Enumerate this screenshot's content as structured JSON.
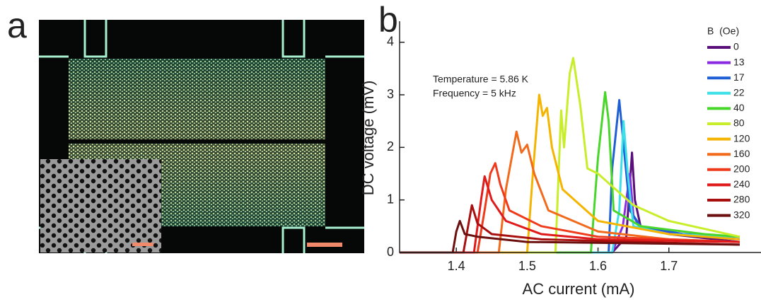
{
  "panel_a": {
    "label": "a"
  },
  "chart_data": {
    "type": "line",
    "panel_label": "b",
    "x_label": "AC current (mA)",
    "y_label": "DC voltage (mV)",
    "annotations": [
      "Temperature = 5.86 K",
      "Frequency = 5 kHz"
    ],
    "legend_title": "B  (Oe)",
    "xlim": [
      1.32,
      1.83
    ],
    "ylim": [
      0,
      4.4
    ],
    "xticks": [
      1.4,
      1.5,
      1.6,
      1.7
    ],
    "yticks": [
      0,
      1,
      2,
      3,
      4
    ],
    "series": [
      {
        "name": "0",
        "color": "#5b0f7a",
        "x": [
          1.32,
          1.62,
          1.64,
          1.648,
          1.652,
          1.66,
          1.7,
          1.8
        ],
        "values": [
          0,
          0,
          0.3,
          1.9,
          1.0,
          0.5,
          0.35,
          0.2
        ]
      },
      {
        "name": "13",
        "color": "#8a2be2",
        "x": [
          1.32,
          1.62,
          1.635,
          1.645,
          1.65,
          1.66,
          1.72,
          1.8
        ],
        "values": [
          0,
          0,
          0.5,
          1.5,
          0.7,
          0.45,
          0.35,
          0.25
        ]
      },
      {
        "name": "17",
        "color": "#1f5fd6",
        "x": [
          1.32,
          1.615,
          1.62,
          1.63,
          1.635,
          1.645,
          1.66,
          1.72,
          1.8
        ],
        "values": [
          0,
          0,
          1.6,
          2.9,
          2.2,
          0.8,
          0.5,
          0.35,
          0.3
        ]
      },
      {
        "name": "22",
        "color": "#3ee0e8",
        "x": [
          1.32,
          1.62,
          1.63,
          1.636,
          1.642,
          1.65,
          1.7,
          1.8
        ],
        "values": [
          0,
          0,
          0.8,
          2.5,
          1.5,
          0.5,
          0.35,
          0.3
        ]
      },
      {
        "name": "40",
        "color": "#49d62a",
        "x": [
          1.32,
          1.59,
          1.6,
          1.61,
          1.615,
          1.622,
          1.66,
          1.75,
          1.8
        ],
        "values": [
          0,
          0,
          1.8,
          3.05,
          2.5,
          0.8,
          0.5,
          0.35,
          0.3
        ]
      },
      {
        "name": "80",
        "color": "#c8ee2a",
        "x": [
          1.32,
          1.54,
          1.548,
          1.552,
          1.56,
          1.565,
          1.575,
          1.585,
          1.6,
          1.65,
          1.7,
          1.8
        ],
        "values": [
          0,
          0,
          2.7,
          2.0,
          3.4,
          3.7,
          2.8,
          1.6,
          1.5,
          0.9,
          0.6,
          0.3
        ]
      },
      {
        "name": "120",
        "color": "#f5b400",
        "x": [
          1.32,
          1.5,
          1.508,
          1.517,
          1.522,
          1.528,
          1.535,
          1.55,
          1.6,
          1.7,
          1.8
        ],
        "values": [
          0,
          0,
          1.5,
          3.0,
          2.6,
          2.75,
          2.0,
          1.2,
          0.6,
          0.35,
          0.25
        ]
      },
      {
        "name": "160",
        "color": "#f26a1b",
        "x": [
          1.32,
          1.46,
          1.47,
          1.485,
          1.492,
          1.5,
          1.51,
          1.53,
          1.6,
          1.7,
          1.8
        ],
        "values": [
          0,
          0,
          1.2,
          2.3,
          1.9,
          2.05,
          1.5,
          0.8,
          0.4,
          0.25,
          0.2
        ]
      },
      {
        "name": "200",
        "color": "#ee3b1c",
        "x": [
          1.32,
          1.43,
          1.44,
          1.448,
          1.455,
          1.462,
          1.475,
          1.52,
          1.6,
          1.8
        ],
        "values": [
          0,
          0,
          0.8,
          1.5,
          1.7,
          1.3,
          0.8,
          0.5,
          0.3,
          0.2
        ]
      },
      {
        "name": "240",
        "color": "#e01a1a",
        "x": [
          1.32,
          1.425,
          1.435,
          1.44,
          1.45,
          1.47,
          1.52,
          1.6,
          1.8
        ],
        "values": [
          0,
          0,
          1.0,
          1.45,
          1.0,
          0.6,
          0.35,
          0.25,
          0.2
        ]
      },
      {
        "name": "280",
        "color": "#a80f0f",
        "x": [
          1.32,
          1.41,
          1.418,
          1.422,
          1.43,
          1.45,
          1.52,
          1.8
        ],
        "values": [
          0,
          0,
          0.6,
          0.9,
          0.55,
          0.35,
          0.25,
          0.15
        ]
      },
      {
        "name": "320",
        "color": "#6b0f0f",
        "x": [
          1.32,
          1.395,
          1.4,
          1.405,
          1.412,
          1.43,
          1.5,
          1.8
        ],
        "values": [
          0,
          0,
          0.4,
          0.6,
          0.35,
          0.3,
          0.2,
          0.15
        ]
      }
    ]
  }
}
